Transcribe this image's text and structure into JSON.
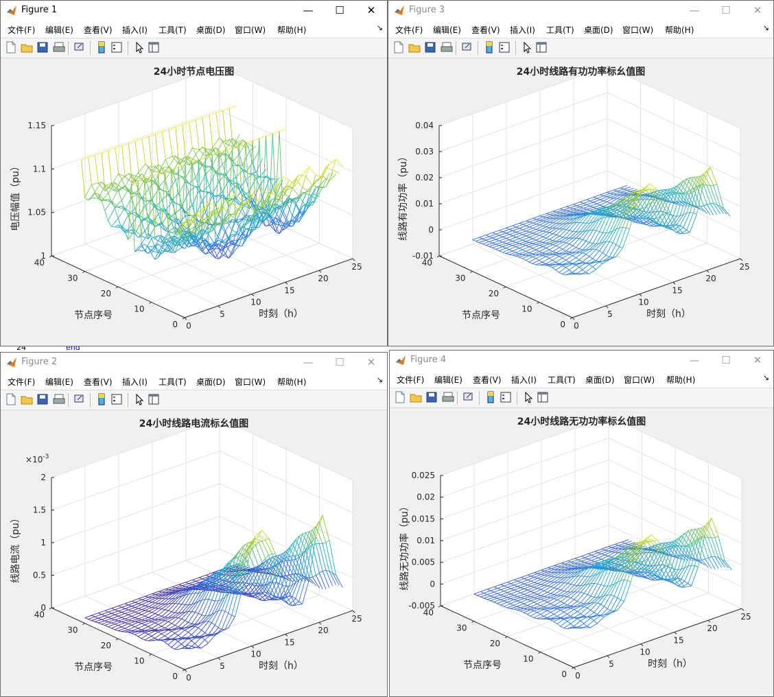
{
  "menus": [
    "文件(F)",
    "编辑(E)",
    "查看(V)",
    "插入(I)",
    "工具(T)",
    "桌面(D)",
    "窗口(W)",
    "帮助(H)"
  ],
  "background_stub": {
    "num": "24",
    "word": "end"
  },
  "windows": [
    {
      "title": "Figure 1",
      "controls": {
        "minimize": "—",
        "maximize": "☐",
        "close": "✕"
      }
    },
    {
      "title": "Figure 3",
      "controls": {
        "minimize": "—",
        "maximize": "☐",
        "close": "✕"
      }
    },
    {
      "title": "Figure 2",
      "controls": {
        "minimize": "—",
        "maximize": "☐",
        "close": "✕"
      }
    },
    {
      "title": "Figure 4",
      "controls": {
        "minimize": "—",
        "maximize": "☐",
        "close": "✕"
      }
    }
  ],
  "chart_data": [
    {
      "type": "mesh3d",
      "title": "24小时节点电压图",
      "xlabel": "时刻（h）",
      "ylabel": "节点序号",
      "zlabel": "电压幅值（pu）",
      "x_range": [
        0,
        25
      ],
      "y_range": [
        0,
        40
      ],
      "z_range": [
        1,
        1.15
      ],
      "x_ticks": [
        "0",
        "5",
        "10",
        "15",
        "20",
        "25"
      ],
      "y_ticks": [
        "0",
        "10",
        "20",
        "30",
        "40"
      ],
      "z_ticks": [
        "1",
        "1.05",
        "1.1",
        "1.15"
      ],
      "exponent": "",
      "hours": 24,
      "nodes": 33,
      "profile": "voltage",
      "series_summary": {
        "max_value": 1.12,
        "typical_low": 1.02
      }
    },
    {
      "type": "mesh3d",
      "title": "24小时线路有功功率标幺值图",
      "xlabel": "时刻（h）",
      "ylabel": "节点序号",
      "zlabel": "线路有功功率（pu）",
      "x_range": [
        0,
        25
      ],
      "y_range": [
        0,
        40
      ],
      "z_range": [
        -0.01,
        0.04
      ],
      "x_ticks": [
        "0",
        "5",
        "10",
        "15",
        "20",
        "25"
      ],
      "y_ticks": [
        "0",
        "10",
        "20",
        "30",
        "40"
      ],
      "z_ticks": [
        "-0.01",
        "0",
        "0.01",
        "0.02",
        "0.03",
        "0.04"
      ],
      "exponent": "",
      "hours": 24,
      "nodes": 32,
      "profile": "active",
      "series_summary": {
        "peak_value": 0.032,
        "peak_hours": [
          12,
          21
        ]
      }
    },
    {
      "type": "mesh3d",
      "title": "24小时线路电流标幺值图",
      "xlabel": "时刻（h）",
      "ylabel": "节点序号",
      "zlabel": "线路电流（pu）",
      "x_range": [
        0,
        25
      ],
      "y_range": [
        0,
        40
      ],
      "z_range": [
        0,
        0.002
      ],
      "x_ticks": [
        "0",
        "5",
        "10",
        "15",
        "20",
        "25"
      ],
      "y_ticks": [
        "0",
        "10",
        "20",
        "30",
        "40"
      ],
      "z_ticks": [
        "0",
        "0.5",
        "1",
        "1.5",
        "2"
      ],
      "exponent": "10",
      "exponent_power": "-3",
      "hours": 24,
      "nodes": 32,
      "profile": "current",
      "series_summary": {
        "peak_value": 0.0018,
        "peak_hours": [
          12,
          21
        ]
      }
    },
    {
      "type": "mesh3d",
      "title": "24小时线路无功功率标幺值图",
      "xlabel": "时刻（h）",
      "ylabel": "节点序号",
      "zlabel": "线路无功功率（pu）",
      "x_range": [
        0,
        25
      ],
      "y_range": [
        0,
        40
      ],
      "z_range": [
        -0.005,
        0.025
      ],
      "x_ticks": [
        "0",
        "5",
        "10",
        "15",
        "20",
        "25"
      ],
      "y_ticks": [
        "0",
        "10",
        "20",
        "30",
        "40"
      ],
      "z_ticks": [
        "-0.005",
        "0",
        "0.005",
        "0.01",
        "0.015",
        "0.02",
        "0.025"
      ],
      "exponent": "",
      "hours": 24,
      "nodes": 32,
      "profile": "reactive",
      "series_summary": {
        "peak_value": 0.02,
        "peak_hours": [
          12,
          21
        ]
      }
    }
  ]
}
